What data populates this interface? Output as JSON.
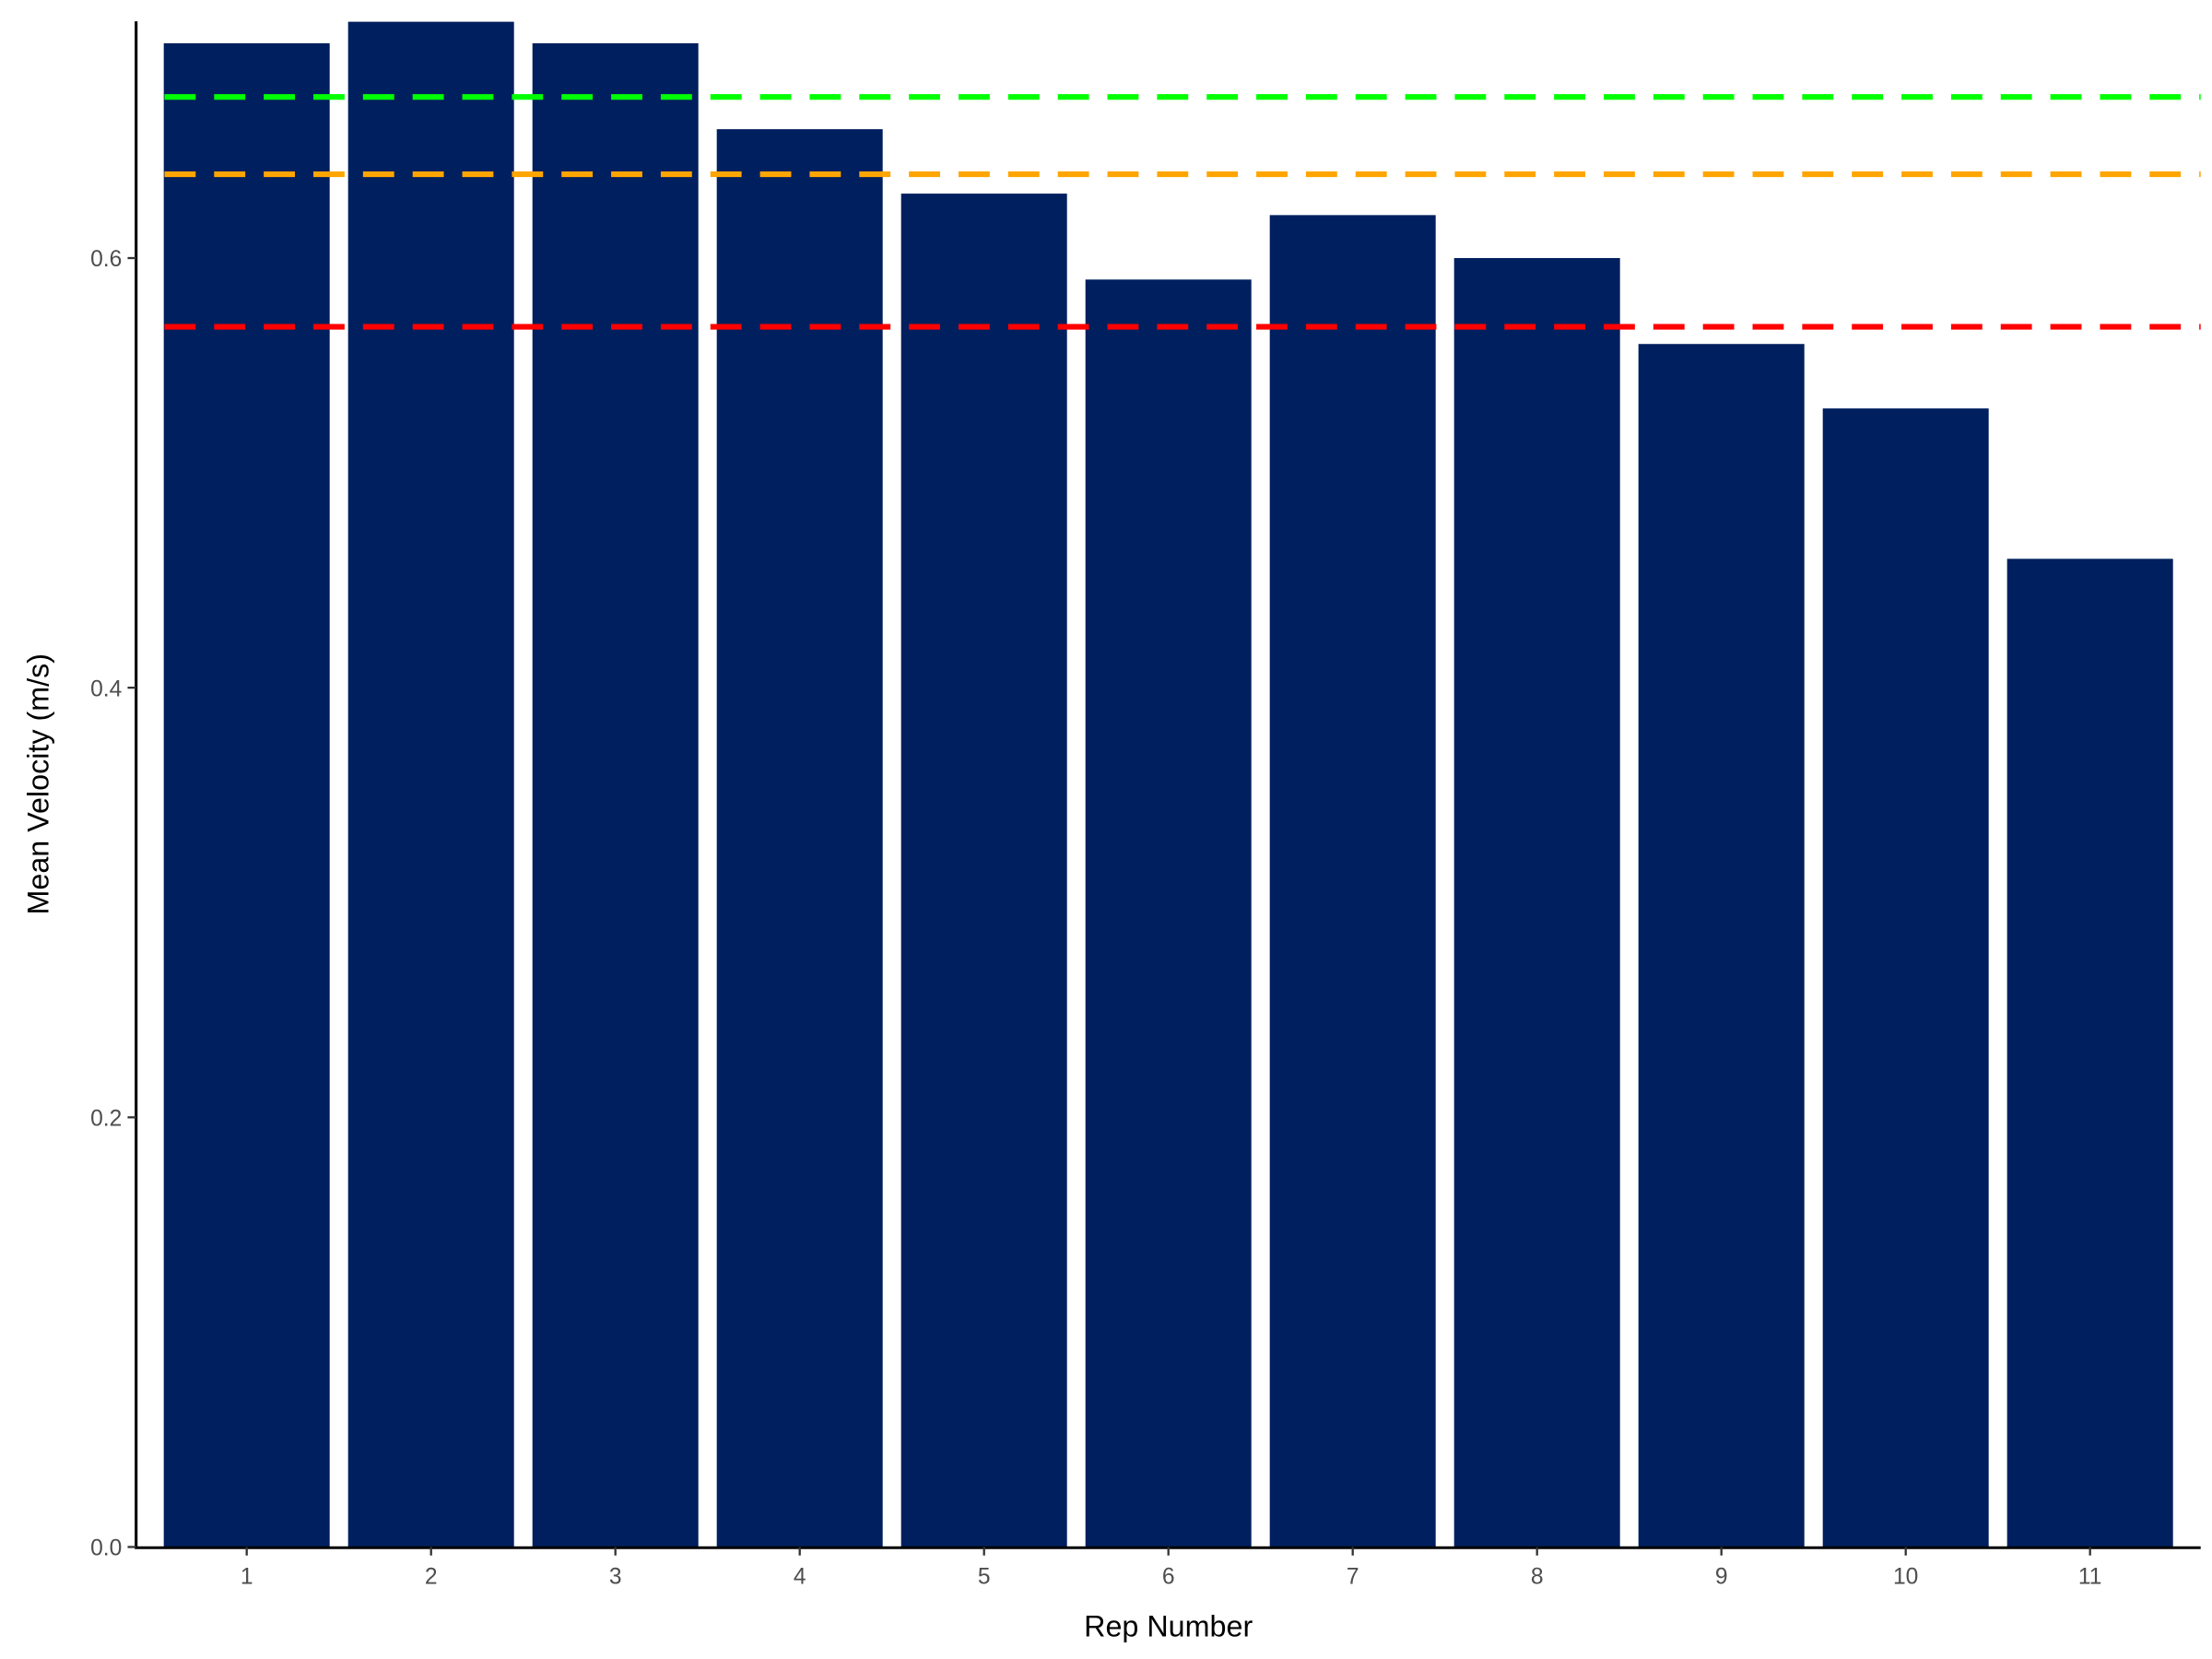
{
  "chart_data": {
    "type": "bar",
    "title": "",
    "xlabel": "Rep Number",
    "ylabel": "Mean Velocity (m/s)",
    "categories": [
      "1",
      "2",
      "3",
      "4",
      "5",
      "6",
      "7",
      "8",
      "9",
      "10",
      "11"
    ],
    "values": [
      0.7,
      0.71,
      0.7,
      0.66,
      0.63,
      0.59,
      0.62,
      0.6,
      0.56,
      0.53,
      0.46
    ],
    "bar_color": "#001F5E",
    "ylim": [
      0,
      0.71
    ],
    "yticks": [
      "0.0",
      "0.2",
      "0.4",
      "0.6"
    ],
    "ytick_values": [
      0,
      0.2,
      0.4,
      0.6
    ],
    "grid": false,
    "reference_lines": [
      {
        "y": 0.675,
        "color": "#00FF00",
        "style": "dashed"
      },
      {
        "y": 0.639,
        "color": "#FFA500",
        "style": "dashed"
      },
      {
        "y": 0.568,
        "color": "#FF0000",
        "style": "dashed"
      }
    ]
  }
}
